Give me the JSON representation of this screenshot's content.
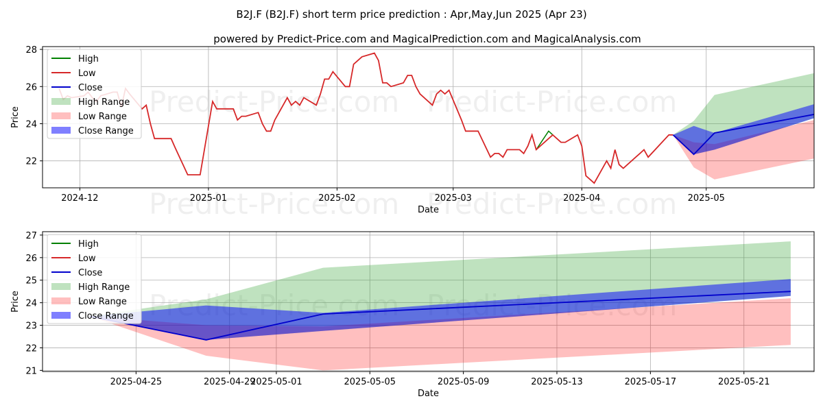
{
  "title": "B2J.F (B2J.F) short term price prediction : Apr,May,Jun 2025 (Apr 23)",
  "subtitle": "powered by Predict-Price.com and MagicalPrediction.com and MagicalAnalysis.com",
  "watermark": "Predict-Price.com",
  "colors": {
    "high": "#008000",
    "low": "#d62728",
    "close": "#0000cc",
    "high_range": "#b3dbb3",
    "low_range": "#ffb6b6",
    "close_range": "#7777ff"
  },
  "chart_data": [
    {
      "type": "line",
      "xlabel": "Date",
      "ylabel": "Price",
      "grid": true,
      "legend": "top-left",
      "xlim": [
        "2024-11-22",
        "2025-05-27"
      ],
      "ylim": [
        20.55,
        28.15
      ],
      "x_ticks": [
        "2024-12-01",
        "2025-01-01",
        "2025-02-01",
        "2025-03-01",
        "2025-04-01",
        "2025-05-01"
      ],
      "x_tick_labels": [
        "2024-12",
        "2025-01",
        "2025-02",
        "2025-03",
        "2025-04",
        "2025-05"
      ],
      "y_ticks": [
        22,
        24,
        26,
        28
      ],
      "legend_entries": [
        "High",
        "Low",
        "Close",
        "High Range",
        "Low Range",
        "Close Range"
      ],
      "history": {
        "dates": [
          "2024-11-26",
          "2024-11-27",
          "2024-11-28",
          "2024-11-29",
          "2024-12-02",
          "2024-12-03",
          "2024-12-04",
          "2024-12-05",
          "2024-12-06",
          "2024-12-09",
          "2024-12-10",
          "2024-12-11",
          "2024-12-12",
          "2024-12-13",
          "2024-12-16",
          "2024-12-17",
          "2024-12-18",
          "2024-12-19",
          "2024-12-20",
          "2024-12-23",
          "2024-12-24",
          "2024-12-27",
          "2024-12-30",
          "2025-01-02",
          "2025-01-03",
          "2025-01-06",
          "2025-01-07",
          "2025-01-08",
          "2025-01-09",
          "2025-01-10",
          "2025-01-13",
          "2025-01-14",
          "2025-01-15",
          "2025-01-16",
          "2025-01-17",
          "2025-01-20",
          "2025-01-21",
          "2025-01-22",
          "2025-01-23",
          "2025-01-24",
          "2025-01-27",
          "2025-01-28",
          "2025-01-29",
          "2025-01-30",
          "2025-01-31",
          "2025-02-03",
          "2025-02-04",
          "2025-02-05",
          "2025-02-06",
          "2025-02-07",
          "2025-02-10",
          "2025-02-11",
          "2025-02-12",
          "2025-02-13",
          "2025-02-14",
          "2025-02-17",
          "2025-02-18",
          "2025-02-19",
          "2025-02-20",
          "2025-02-21",
          "2025-02-24",
          "2025-02-25",
          "2025-02-26",
          "2025-02-27",
          "2025-02-28",
          "2025-03-03",
          "2025-03-04",
          "2025-03-05",
          "2025-03-06",
          "2025-03-07",
          "2025-03-10",
          "2025-03-11",
          "2025-03-12",
          "2025-03-13",
          "2025-03-14",
          "2025-03-17",
          "2025-03-18",
          "2025-03-19",
          "2025-03-20",
          "2025-03-21",
          "2025-03-24",
          "2025-03-25",
          "2025-03-26",
          "2025-03-27",
          "2025-03-28",
          "2025-03-31",
          "2025-04-01",
          "2025-04-02",
          "2025-04-03",
          "2025-04-04",
          "2025-04-07",
          "2025-04-08",
          "2025-04-09",
          "2025-04-10",
          "2025-04-11",
          "2025-04-14",
          "2025-04-15",
          "2025-04-16",
          "2025-04-17",
          "2025-04-22",
          "2025-04-23"
        ],
        "low": [
          25.9,
          25.3,
          25.5,
          25.4,
          25.5,
          25.7,
          25.4,
          25.2,
          25.5,
          25.7,
          25.7,
          24.9,
          25.9,
          25.6,
          24.8,
          25.0,
          24.0,
          23.2,
          23.2,
          23.2,
          22.7,
          21.25,
          21.25,
          25.2,
          24.8,
          24.8,
          24.8,
          24.2,
          24.4,
          24.4,
          24.6,
          24.0,
          23.6,
          23.6,
          24.2,
          25.4,
          25.0,
          25.2,
          25.0,
          25.4,
          25.0,
          25.6,
          26.4,
          26.4,
          26.8,
          26.0,
          26.0,
          27.2,
          27.4,
          27.6,
          27.8,
          27.4,
          26.2,
          26.2,
          26.0,
          26.2,
          26.6,
          26.6,
          26.0,
          25.6,
          25.0,
          25.6,
          25.8,
          25.6,
          25.8,
          24.2,
          23.6,
          23.6,
          23.6,
          23.6,
          22.2,
          22.4,
          22.4,
          22.2,
          22.6,
          22.6,
          22.4,
          22.8,
          23.4,
          22.6,
          23.2,
          23.4,
          23.2,
          23.0,
          23.0,
          23.4,
          22.8,
          21.2,
          21.0,
          20.8,
          22.0,
          21.6,
          22.6,
          21.8,
          21.6,
          22.2,
          22.4,
          22.6,
          22.2,
          23.4,
          23.4
        ],
        "high_extra": [
          [
            "2025-03-24",
            23.6
          ]
        ]
      },
      "forecast": {
        "dates": [
          "2025-04-23",
          "2025-04-28",
          "2025-05-03",
          "2025-05-27"
        ],
        "close": [
          23.4,
          22.35,
          23.5,
          24.5
        ],
        "close_range_upper": [
          23.4,
          23.88,
          23.5,
          25.05
        ],
        "close_range_lower": [
          23.4,
          22.35,
          22.6,
          24.3
        ],
        "high_range_upper": [
          23.4,
          24.15,
          25.55,
          26.72
        ],
        "high_range_lower": [
          23.4,
          22.35,
          22.6,
          24.3
        ],
        "low_range_upper": [
          23.4,
          23.0,
          22.9,
          24.2
        ],
        "low_range_lower": [
          23.4,
          21.65,
          21.0,
          22.13
        ]
      }
    },
    {
      "type": "line",
      "xlabel": "Date",
      "ylabel": "Price",
      "grid": true,
      "legend": "top-left",
      "xlim": [
        "2025-04-21",
        "2025-05-24"
      ],
      "ylim": [
        20.95,
        27.15
      ],
      "x_ticks": [
        "2025-04-25",
        "2025-04-29",
        "2025-05-01",
        "2025-05-05",
        "2025-05-09",
        "2025-05-13",
        "2025-05-17",
        "2025-05-21"
      ],
      "x_tick_labels": [
        "2025-04-25",
        "2025-04-29",
        "2025-05-01",
        "2025-05-05",
        "2025-05-09",
        "2025-05-13",
        "2025-05-17",
        "2025-05-21"
      ],
      "y_ticks": [
        21,
        22,
        23,
        24,
        25,
        26,
        27
      ],
      "legend_entries": [
        "High",
        "Low",
        "Close",
        "High Range",
        "Low Range",
        "Close Range"
      ],
      "forecast": {
        "dates": [
          "2025-04-23",
          "2025-04-28",
          "2025-05-03",
          "2025-05-23"
        ],
        "close": [
          23.4,
          22.35,
          23.5,
          24.5
        ],
        "close_range_upper": [
          23.4,
          23.88,
          23.55,
          25.05
        ],
        "close_range_lower": [
          23.4,
          22.35,
          22.75,
          24.3
        ],
        "high_range_upper": [
          23.4,
          24.15,
          25.55,
          26.72
        ],
        "high_range_lower": [
          23.4,
          22.35,
          22.75,
          24.3
        ],
        "low_range_upper": [
          23.4,
          23.0,
          22.95,
          24.2
        ],
        "low_range_lower": [
          23.4,
          21.65,
          21.0,
          22.13
        ]
      }
    }
  ]
}
